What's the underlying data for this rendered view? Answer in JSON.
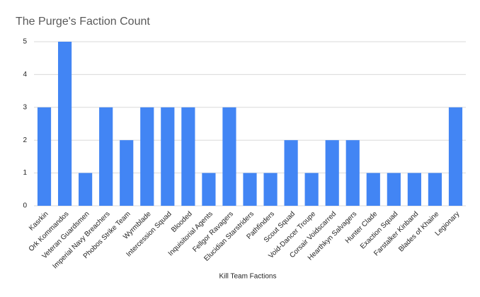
{
  "chart_data": {
    "type": "bar",
    "title": "The Purge's Faction Count",
    "x_label": "Kill Team Factions",
    "categories": [
      "Kasrkin",
      "Ork Kommandos",
      "Veteran Guardsmen",
      "Imperial Navy Breachers",
      "Phobos Strike Team",
      "Wyrmblade",
      "Intercession Squad",
      "Blooded",
      "Inquisitorial Agents",
      "Fellgor Ravagers",
      "Elucidian Starstriders",
      "Pathfinders",
      "Scout Squad",
      "Void-Dancer Troupe",
      "Corsair Voidscarred",
      "Hearthkyn Salvagers",
      "Hunter Clade",
      "Exaction Squad",
      "Farstalker Kinband",
      "Blades of Khaine",
      "Legionary"
    ],
    "values": [
      3,
      5,
      1,
      3,
      2,
      3,
      3,
      3,
      1,
      3,
      1,
      1,
      2,
      1,
      2,
      2,
      1,
      1,
      1,
      1,
      3
    ],
    "color": "#4285f4",
    "ylim": [
      0,
      5
    ],
    "yticks": [
      0,
      1,
      2,
      3,
      4,
      5
    ],
    "grid": true
  }
}
